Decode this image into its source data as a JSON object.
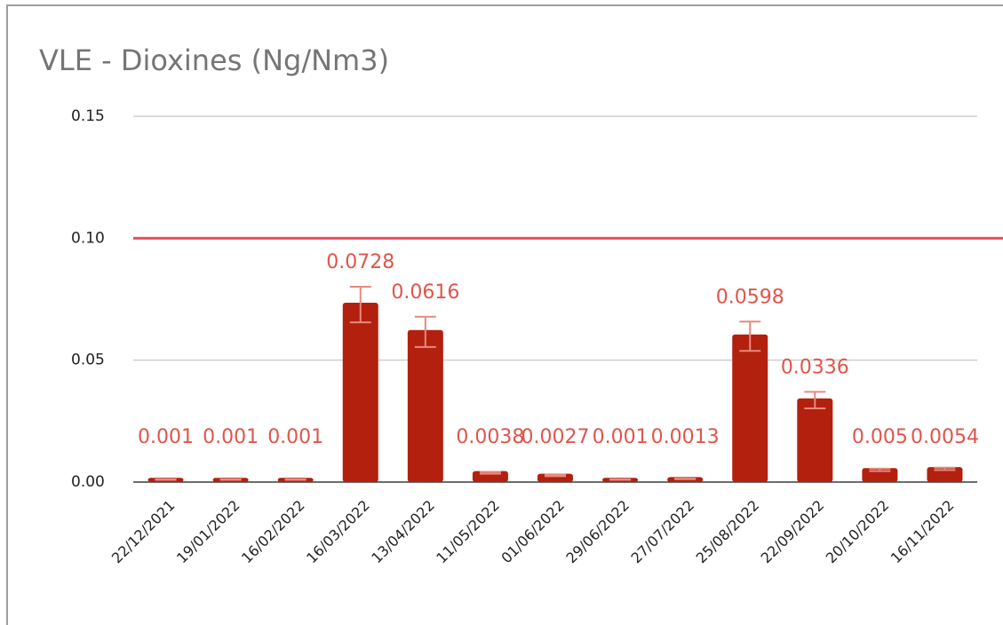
{
  "chart_data": {
    "type": "bar",
    "title": "VLE - Dioxines (Ng/Nm3)",
    "categories": [
      "22/12/2021",
      "19/01/2022",
      "16/02/2022",
      "16/03/2022",
      "13/04/2022",
      "11/05/2022",
      "01/06/2022",
      "29/06/2022",
      "27/07/2022",
      "25/08/2022",
      "22/09/2022",
      "20/10/2022",
      "16/11/2022"
    ],
    "values": [
      0.001,
      0.001,
      0.001,
      0.0728,
      0.0616,
      0.0038,
      0.0027,
      0.001,
      0.0013,
      0.0598,
      0.0336,
      0.005,
      0.0054
    ],
    "errors": [
      0.0001,
      0.0001,
      0.0001,
      0.0073,
      0.0062,
      0.0004,
      0.0003,
      0.0001,
      0.0001,
      0.006,
      0.0034,
      0.0005,
      0.0005
    ],
    "color": "#b3200e",
    "label_color": "#e0554b",
    "error_color": "#e8897f",
    "threshold": 0.1,
    "threshold_color": "#ee4a5c",
    "ylim": [
      0,
      0.15
    ],
    "yticks": [
      {
        "value": 0,
        "label": "0.00"
      },
      0.05,
      {
        "value": 0.1,
        "label": "0.10"
      },
      0.15
    ],
    "grid": true
  }
}
